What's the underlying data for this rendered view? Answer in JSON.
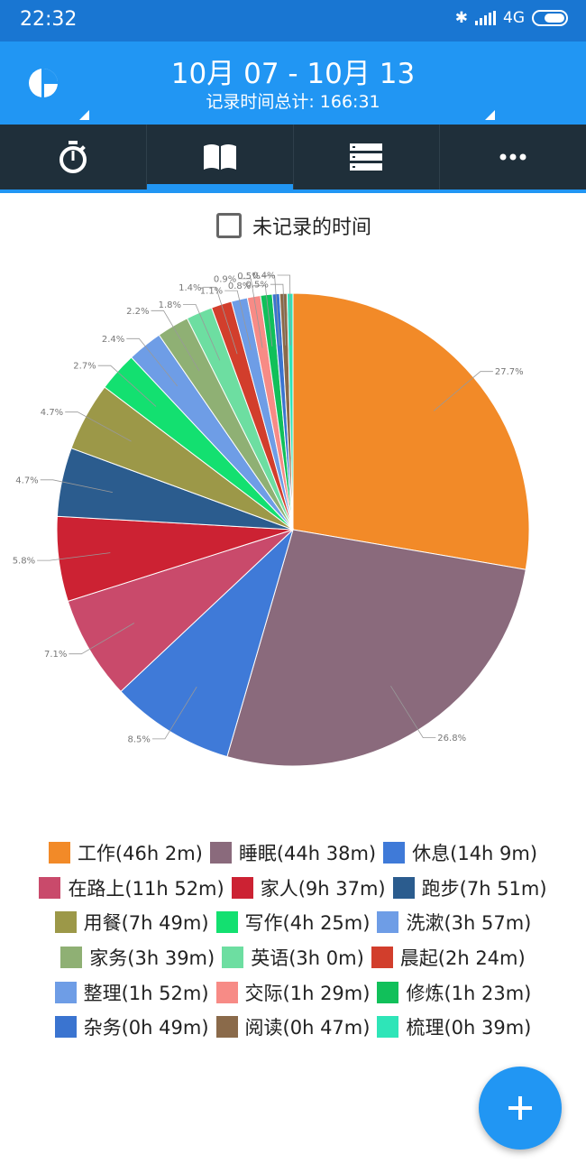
{
  "status_bar": {
    "time": "22:32",
    "network": "4G"
  },
  "header": {
    "date_range": "10月 07 - 10月 13",
    "total_label": "记录时间总计: 166:31"
  },
  "tabs": [
    {
      "name": "timer",
      "icon": "stopwatch-icon"
    },
    {
      "name": "records",
      "icon": "book-icon"
    },
    {
      "name": "list",
      "icon": "list-icon"
    },
    {
      "name": "more",
      "icon": "more-icon"
    }
  ],
  "checkbox": {
    "label": "未记录的时间",
    "checked": false
  },
  "chart_data": {
    "type": "pie",
    "slices": [
      {
        "label": "工作",
        "duration": "46h 2m",
        "percent": 27.7,
        "color": "#f28a28"
      },
      {
        "label": "睡眠",
        "duration": "44h 38m",
        "percent": 26.8,
        "color": "#8a6a7c"
      },
      {
        "label": "休息",
        "duration": "14h 9m",
        "percent": 8.5,
        "color": "#3f7ad8"
      },
      {
        "label": "在路上",
        "duration": "11h 52m",
        "percent": 7.1,
        "color": "#c94a6b"
      },
      {
        "label": "家人",
        "duration": "9h 37m",
        "percent": 5.8,
        "color": "#cc2233"
      },
      {
        "label": "跑步",
        "duration": "7h 51m",
        "percent": 4.7,
        "color": "#2b5c8e"
      },
      {
        "label": "用餐",
        "duration": "7h 49m",
        "percent": 4.7,
        "color": "#9c9848"
      },
      {
        "label": "写作",
        "duration": "4h 25m",
        "percent": 2.7,
        "color": "#13e070"
      },
      {
        "label": "洗漱",
        "duration": "3h 57m",
        "percent": 2.4,
        "color": "#6e9de6"
      },
      {
        "label": "家务",
        "duration": "3h 39m",
        "percent": 2.2,
        "color": "#8fb074"
      },
      {
        "label": "英语",
        "duration": "3h 0m",
        "percent": 1.8,
        "color": "#6ddea1"
      },
      {
        "label": "晨起",
        "duration": "2h 24m",
        "percent": 1.4,
        "color": "#d23e2c"
      },
      {
        "label": "整理",
        "duration": "1h 52m",
        "percent": 1.1,
        "color": "#6e9de6"
      },
      {
        "label": "交际",
        "duration": "1h 29m",
        "percent": 0.9,
        "color": "#f78b86"
      },
      {
        "label": "修炼",
        "duration": "1h 23m",
        "percent": 0.8,
        "color": "#11c05a"
      },
      {
        "label": "杂务",
        "duration": "0h 49m",
        "percent": 0.5,
        "color": "#3a74d0"
      },
      {
        "label": "阅读",
        "duration": "0h 47m",
        "percent": 0.5,
        "color": "#8a6a4a"
      },
      {
        "label": "梳理",
        "duration": "0h 39m",
        "percent": 0.4,
        "color": "#2ee5b8"
      }
    ]
  },
  "legend_rows": [
    [
      "工作(46h 2m)",
      "睡眠(44h 38m)",
      "休息(14h 9m)"
    ],
    [
      "在路上(11h 52m)",
      "家人(9h 37m)",
      "跑步(7h 51m)"
    ],
    [
      "用餐(7h 49m)",
      "写作(4h 25m)",
      "洗漱(3h 57m)"
    ],
    [
      "家务(3h 39m)",
      "英语(3h 0m)",
      "晨起(2h 24m)"
    ],
    [
      "整理(1h 52m)",
      "交际(1h 29m)",
      "修炼(1h 23m)"
    ],
    [
      "杂务(0h 49m)",
      "阅读(0h 47m)",
      "梳理(0h 39m)"
    ]
  ],
  "fab": {
    "icon": "plus-icon"
  }
}
